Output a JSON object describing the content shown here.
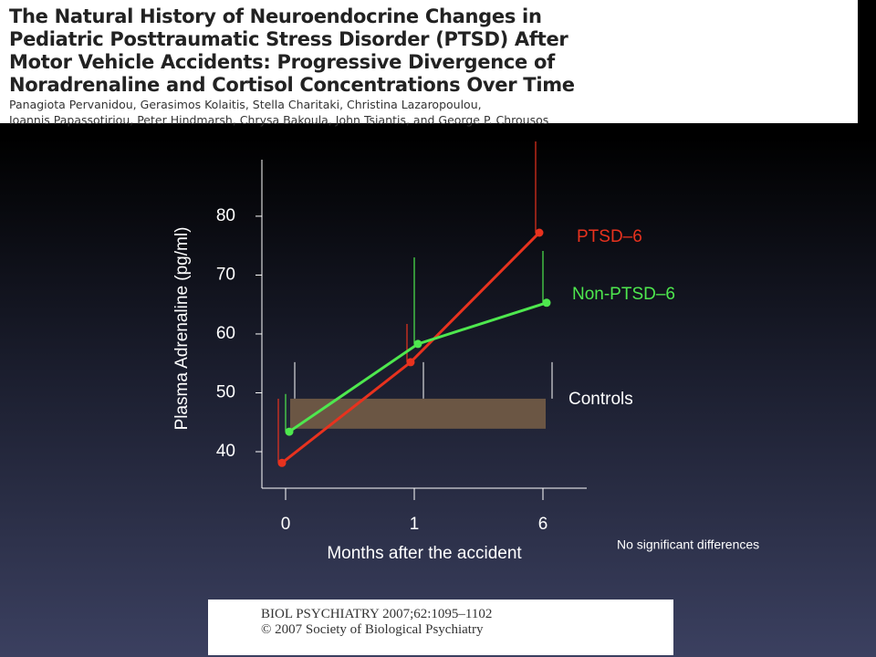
{
  "header": {
    "title_lines": [
      "The Natural History of Neuroendocrine Changes in",
      "Pediatric Posttraumatic Stress Disorder (PTSD) After",
      "Motor Vehicle Accidents: Progressive Divergence of",
      "Noradrenaline and Cortisol Concentrations Over Time"
    ],
    "authors": [
      "Panagiota Pervanidou, Gerasimos Kolaitis, Stella Charitaki, Christina Lazaropoulou,",
      "Ioannis Papassotiriou, Peter Hindmarsh, Chrysa Bakoula, John Tsiantis, and George P. Chrousos"
    ]
  },
  "chart_data": {
    "type": "line",
    "y_label": "Plasma Adrenaline (pg/ml)",
    "x_label": "Months after the accident",
    "categories": [
      "0",
      "1",
      "6"
    ],
    "series": [
      {
        "name": "PTSD–6",
        "color": "#e8321e",
        "values": [
          38.1,
          55.2,
          77.2
        ],
        "errors": [
          10.9,
          6.5,
          15.5
        ]
      },
      {
        "name": "Non-PTSD–6",
        "color": "#4ee84e",
        "values": [
          43.4,
          58.3,
          65.3
        ],
        "errors": [
          6.4,
          14.7,
          8.8
        ]
      }
    ],
    "controls": {
      "name": "Controls",
      "color": "#6b5644",
      "low": 43.9,
      "high": 49,
      "upper": 55.2
    },
    "ylim": [
      33.8,
      89.6
    ],
    "yticks": [
      40,
      50,
      60,
      70,
      80
    ],
    "note": "No significant differences"
  },
  "citation": [
    "BIOL PSYCHIATRY 2007;62:1095–1102",
    "© 2007 Society of Biological Psychiatry"
  ]
}
